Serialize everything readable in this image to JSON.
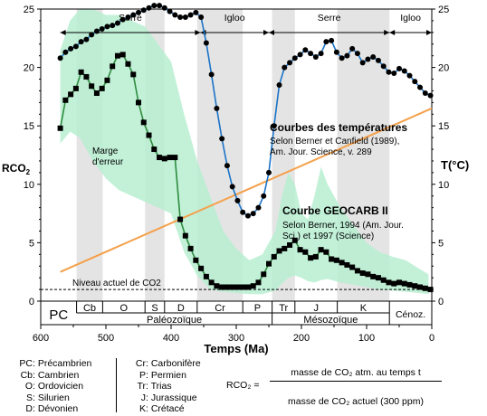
{
  "chart_data": {
    "type": "line",
    "x_axis": {
      "label": "Temps (Ma)",
      "range": [
        600,
        0
      ],
      "ticks": [
        600,
        500,
        400,
        300,
        200,
        100,
        0
      ]
    },
    "y_axis_left": {
      "label": "RCO",
      "label_sub": "2",
      "range": [
        0,
        25
      ],
      "ticks": [
        0,
        5,
        10,
        15,
        20,
        25
      ]
    },
    "y_axis_right": {
      "label": "T(°C)",
      "range": [
        0,
        25
      ],
      "ticks": [
        0,
        5,
        10,
        15,
        20,
        25
      ]
    },
    "periods": [
      {
        "code": "PC",
        "start": 600,
        "end": 545
      },
      {
        "code": "Cb",
        "start": 545,
        "end": 505
      },
      {
        "code": "O",
        "start": 505,
        "end": 440
      },
      {
        "code": "S",
        "start": 440,
        "end": 410
      },
      {
        "code": "D",
        "start": 410,
        "end": 360
      },
      {
        "code": "Cr",
        "start": 360,
        "end": 290
      },
      {
        "code": "P",
        "start": 290,
        "end": 245
      },
      {
        "code": "Tr",
        "start": 245,
        "end": 210
      },
      {
        "code": "J",
        "start": 210,
        "end": 145
      },
      {
        "code": "K",
        "start": 145,
        "end": 65
      },
      {
        "code": "Cénoz.",
        "start": 65,
        "end": 0
      }
    ],
    "eras": [
      {
        "name": "Paléozoïque",
        "start": 545,
        "end": 245
      },
      {
        "name": "Mésozoïque",
        "start": 245,
        "end": 65
      }
    ],
    "climate_phases": [
      {
        "name": "Serre",
        "start": 570,
        "end": 355
      },
      {
        "name": "Igloo",
        "start": 355,
        "end": 250
      },
      {
        "name": "Serre",
        "start": 250,
        "end": 65
      },
      {
        "name": "Igloo",
        "start": 65,
        "end": 0
      }
    ],
    "shaded_columns": [
      [
        545,
        505
      ],
      [
        440,
        410
      ],
      [
        360,
        290
      ],
      [
        245,
        210
      ],
      [
        145,
        65
      ]
    ],
    "temperature_series": {
      "name": "Courbes des températures",
      "source_lines": [
        "Selon Berner et Canfield (1989),",
        "Am. Jour. Science, v. 289"
      ],
      "x": [
        570,
        562,
        554,
        546,
        538,
        530,
        522,
        514,
        506,
        498,
        490,
        482,
        474,
        466,
        458,
        450,
        442,
        434,
        426,
        418,
        410,
        402,
        394,
        386,
        378,
        370,
        362,
        354,
        346,
        338,
        330,
        322,
        314,
        306,
        298,
        290,
        282,
        274,
        266,
        258,
        250,
        242,
        234,
        226,
        218,
        210,
        202,
        194,
        186,
        178,
        170,
        162,
        154,
        146,
        138,
        130,
        122,
        114,
        106,
        98,
        90,
        82,
        74,
        66,
        58,
        50,
        42,
        34,
        26,
        18,
        10,
        2
      ],
      "y": [
        20.8,
        21.3,
        21.6,
        21.8,
        22.2,
        22.4,
        22.8,
        23.1,
        23.3,
        23.5,
        23.6,
        23.8,
        24.1,
        24.3,
        24.5,
        24.7,
        24.9,
        25.1,
        25.3,
        25.3,
        25.1,
        24.8,
        24.5,
        24.3,
        24.3,
        24.5,
        24.7,
        24.3,
        22.1,
        19.4,
        16.5,
        13.9,
        11.6,
        9.8,
        8.6,
        7.6,
        7.3,
        7.5,
        8.0,
        9.0,
        11.0,
        15.0,
        18.5,
        20.0,
        20.4,
        20.8,
        21.1,
        21.5,
        21.2,
        20.9,
        21.2,
        22.2,
        22.3,
        21.3,
        20.8,
        21.0,
        21.6,
        21.2,
        20.4,
        20.7,
        20.9,
        20.6,
        20.1,
        19.6,
        19.5,
        19.9,
        19.7,
        19.3,
        18.8,
        18.3,
        17.8,
        17.6
      ]
    },
    "co2_series": {
      "name": "Courbe GEOCARB II",
      "source_lines": [
        "Selon Berner, 1994 (Am. Jour.",
        "Sci.) et 1997 (Science)"
      ],
      "x": [
        570,
        562,
        554,
        546,
        538,
        530,
        522,
        514,
        506,
        498,
        490,
        482,
        474,
        466,
        458,
        450,
        442,
        434,
        426,
        418,
        410,
        402,
        394,
        386,
        378,
        370,
        362,
        354,
        346,
        338,
        330,
        322,
        314,
        306,
        298,
        290,
        282,
        274,
        266,
        258,
        250,
        242,
        234,
        226,
        218,
        210,
        202,
        194,
        186,
        178,
        170,
        162,
        154,
        146,
        138,
        130,
        122,
        114,
        106,
        98,
        90,
        82,
        74,
        66,
        58,
        50,
        42,
        34,
        26,
        18,
        10,
        2
      ],
      "y": [
        14.8,
        17.2,
        17.7,
        18.2,
        19.6,
        19.2,
        18.4,
        17.8,
        18.2,
        18.9,
        20.1,
        21.0,
        21.1,
        20.3,
        19.4,
        17.0,
        15.3,
        14.2,
        13.0,
        12.3,
        12.2,
        12.3,
        12.3,
        7.0,
        5.6,
        4.5,
        3.5,
        2.8,
        2.1,
        1.6,
        1.3,
        1.2,
        1.2,
        1.2,
        1.2,
        1.2,
        1.2,
        1.3,
        1.6,
        2.3,
        3.2,
        3.8,
        4.3,
        4.5,
        4.8,
        5.2,
        4.4,
        4.2,
        3.7,
        3.8,
        4.4,
        4.2,
        3.6,
        3.5,
        3.3,
        3.1,
        2.9,
        2.6,
        2.4,
        2.3,
        2.1,
        2.0,
        1.8,
        1.6,
        1.5,
        1.6,
        1.5,
        1.4,
        1.3,
        1.2,
        1.1,
        1.0
      ]
    },
    "error_band": {
      "label_lines": [
        "Marge",
        "d'erreur"
      ],
      "x": [
        570,
        555,
        540,
        520,
        500,
        480,
        460,
        440,
        420,
        400,
        380,
        360,
        340,
        320,
        300,
        280,
        260,
        240,
        230,
        220,
        210,
        200,
        190,
        180,
        170,
        160,
        140,
        120,
        100,
        80,
        60,
        40,
        20,
        5
      ],
      "upper": [
        21.5,
        24.0,
        25.0,
        25.0,
        24.5,
        24.5,
        24.0,
        23.5,
        22.0,
        20.5,
        16.0,
        12.0,
        9.0,
        6.0,
        4.5,
        3.5,
        4.0,
        6.0,
        9.0,
        11.0,
        10.0,
        7.5,
        7.0,
        9.0,
        11.5,
        10.0,
        8.0,
        6.5,
        5.0,
        4.2,
        3.8,
        3.5,
        2.8,
        2.3
      ],
      "lower": [
        13.5,
        14.5,
        14.0,
        12.0,
        10.5,
        9.5,
        9.0,
        8.5,
        8.0,
        7.5,
        4.2,
        2.2,
        1.0,
        0.8,
        0.7,
        0.6,
        0.6,
        0.9,
        1.5,
        2.0,
        2.2,
        2.0,
        1.7,
        1.6,
        1.8,
        1.9,
        1.6,
        1.4,
        1.2,
        1.0,
        0.9,
        0.8,
        0.7,
        0.6
      ]
    },
    "trend_line": {
      "x": [
        570,
        0
      ],
      "y": [
        2.5,
        16.5
      ]
    },
    "reference_line": {
      "label": "Niveau actuel de CO2",
      "y": 1
    }
  },
  "legend": {
    "items": [
      {
        "code": "PC",
        "name": "Précambrien"
      },
      {
        "code": "Cb",
        "name": "Cambrien"
      },
      {
        "code": "O",
        "name": "Ordovicien"
      },
      {
        "code": "S",
        "name": "Silurien"
      },
      {
        "code": "D",
        "name": "Dévonien"
      },
      {
        "code": "Cr",
        "name": "Carbonifère"
      },
      {
        "code": "P",
        "name": "Permien"
      },
      {
        "code": "Tr",
        "name": "Trias"
      },
      {
        "code": "J",
        "name": "Jurassique"
      },
      {
        "code": "K",
        "name": "Crétacé"
      }
    ],
    "formula": {
      "lhs": "RCO₂ =",
      "numerator": "masse de CO₂ atm. au temps t",
      "denominator": "masse de CO₂ actuel (300 ppm)"
    }
  },
  "colors": {
    "band": "#b7efd1",
    "column": "#e4e4e4",
    "temperature": "#1a73c8",
    "co2": "#2e8b3e",
    "trend": "#f5a04a"
  }
}
